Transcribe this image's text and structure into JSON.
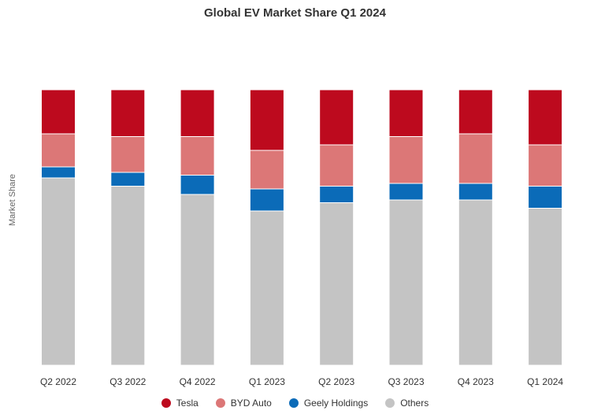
{
  "chart_data": {
    "type": "bar",
    "stacked": true,
    "normalized": true,
    "title": "Global EV Market Share Q1 2024",
    "xlabel": "",
    "ylabel": "Market Share",
    "ylim": [
      0,
      100
    ],
    "grid": false,
    "legend_position": "bottom",
    "categories": [
      "Q2 2022",
      "Q3 2022",
      "Q4 2022",
      "Q1 2023",
      "Q2 2023",
      "Q3 2023",
      "Q4 2023",
      "Q1 2024"
    ],
    "series": [
      {
        "name": "Others",
        "color": "#c4c4c4",
        "values": [
          68.0,
          65.0,
          62.0,
          56.0,
          59.0,
          60.0,
          60.0,
          57.0
        ]
      },
      {
        "name": "Geely Holdings",
        "color": "#0b6bb8",
        "values": [
          4.0,
          5.0,
          7.0,
          8.0,
          6.0,
          6.0,
          6.0,
          8.0
        ]
      },
      {
        "name": "BYD Auto",
        "color": "#dc7777",
        "values": [
          12.0,
          13.0,
          14.0,
          14.0,
          15.0,
          17.0,
          18.0,
          15.0
        ]
      },
      {
        "name": "Tesla",
        "color": "#bd0a1e",
        "values": [
          16.0,
          17.0,
          17.0,
          22.0,
          20.0,
          17.0,
          16.0,
          20.0
        ]
      }
    ],
    "legend_order": [
      "Tesla",
      "BYD Auto",
      "Geely Holdings",
      "Others"
    ]
  }
}
